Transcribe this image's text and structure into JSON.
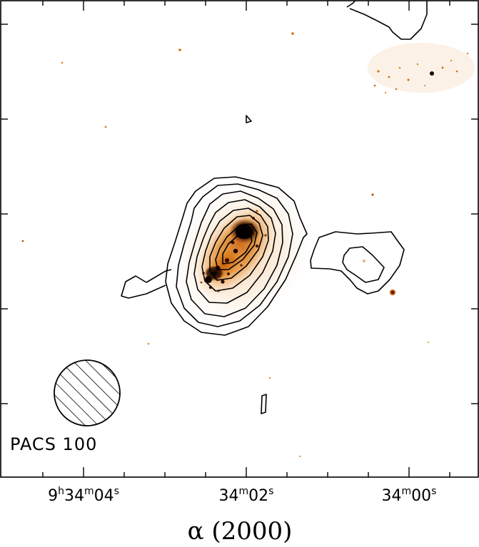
{
  "figure": {
    "beam_label": "PACS 100",
    "x_axis_title": "α (2000)",
    "x_ticks": [
      {
        "h": "9",
        "h_unit": "h",
        "m": "34",
        "m_unit": "m",
        "s": "04",
        "s_unit": "s"
      },
      {
        "m": "34",
        "m_unit": "m",
        "s": "02",
        "s_unit": "s"
      },
      {
        "m": "34",
        "m_unit": "m",
        "s": "00",
        "s_unit": "s"
      }
    ],
    "colors": {
      "background": "#ffffff",
      "emission_orange": "#e07a10",
      "emission_dark": "#1a0800",
      "contour": "#000000"
    },
    "contour_levels": 9
  }
}
